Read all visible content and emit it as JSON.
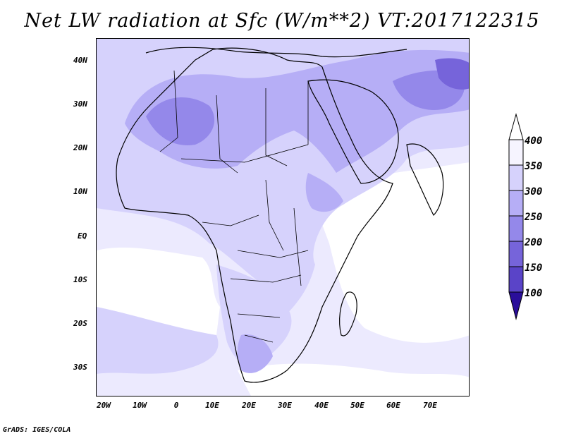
{
  "title": "Net LW radiation at Sfc (W/m**2) VT:2017122315",
  "credit": "GrADS: IGES/COLA",
  "map": {
    "lon_range": [
      -23,
      80
    ],
    "lat_range": [
      -37,
      45
    ],
    "x_ticks": [
      "20W",
      "10W",
      "0",
      "10E",
      "20E",
      "30E",
      "40E",
      "50E",
      "60E",
      "70E"
    ],
    "y_ticks": [
      "40N",
      "30N",
      "20N",
      "10N",
      "EQ",
      "10S",
      "20S",
      "30S"
    ]
  },
  "colorbar": {
    "labels": [
      "400",
      "350",
      "300",
      "250",
      "200",
      "150",
      "100"
    ],
    "colors": [
      "#f6f4ff",
      "#d6d2fc",
      "#b6aef6",
      "#9488ea",
      "#7664da",
      "#5a44c8",
      "#3a22aa"
    ]
  }
}
